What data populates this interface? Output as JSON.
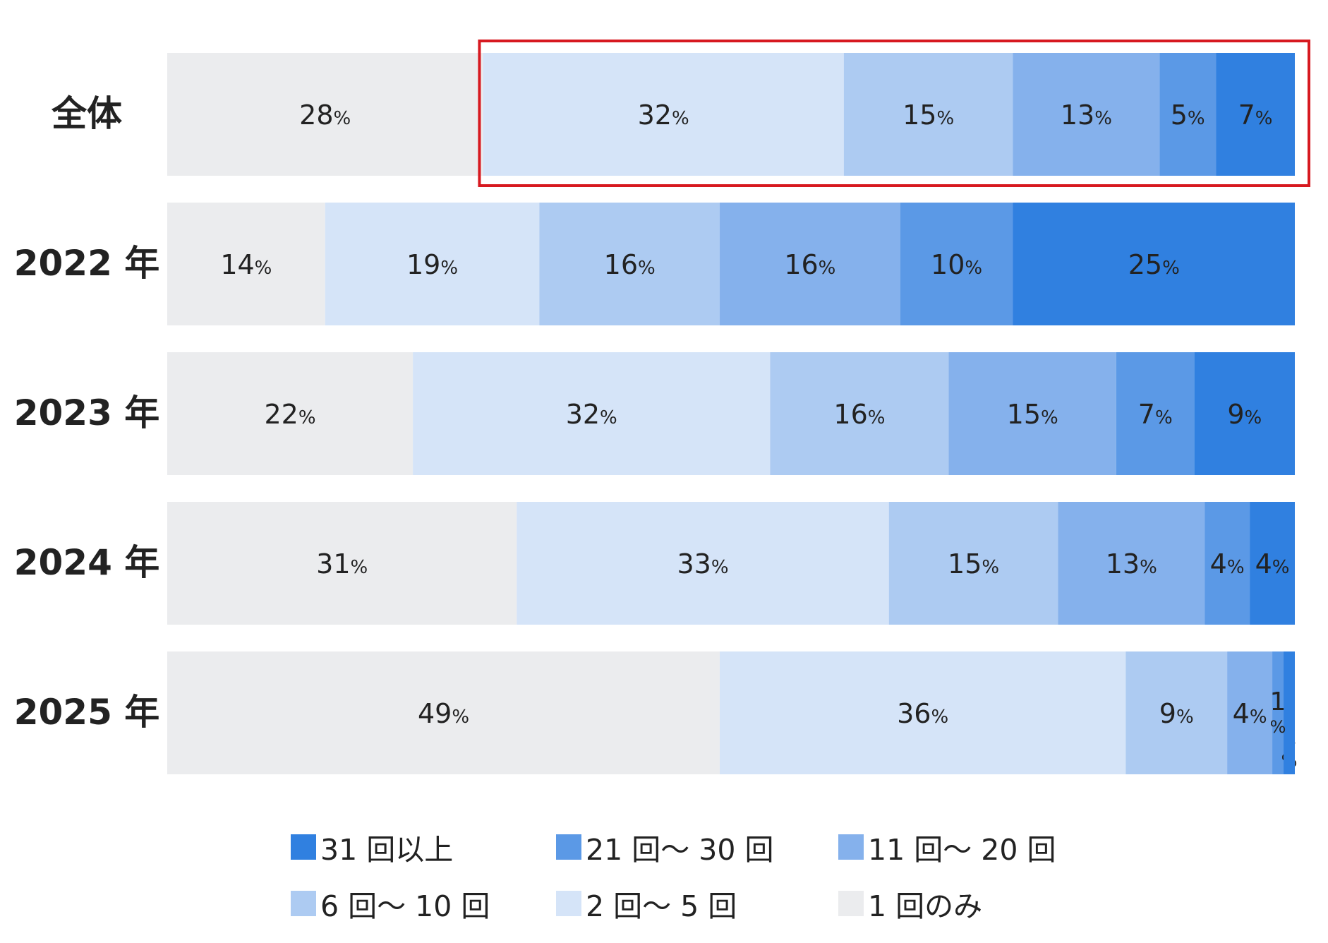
{
  "chart_data": {
    "type": "bar",
    "orientation": "horizontal",
    "stacked": true,
    "normalized_percent": true,
    "categories": [
      "全体",
      "2022 年",
      "2023 年",
      "2024 年",
      "2025 年"
    ],
    "series": [
      {
        "name": "1 回のみ",
        "color": "#ebecee",
        "values": [
          28,
          14,
          22,
          31,
          49
        ]
      },
      {
        "name": "2 回～ 5 回",
        "color": "#d5e4f8",
        "values": [
          32,
          19,
          32,
          33,
          36
        ]
      },
      {
        "name": "6 回～ 10 回",
        "color": "#adcbf2",
        "values": [
          15,
          16,
          16,
          15,
          9
        ]
      },
      {
        "name": "11 回～ 20 回",
        "color": "#85b1ec",
        "values": [
          13,
          16,
          15,
          13,
          4
        ]
      },
      {
        "name": "21 回～ 30 回",
        "color": "#5b99e6",
        "values": [
          5,
          10,
          7,
          4,
          1
        ]
      },
      {
        "name": "31 回以上",
        "color": "#3080e0",
        "values": [
          7,
          25,
          9,
          4,
          1
        ]
      }
    ],
    "value_suffix": "%",
    "legend_order": [
      "31 回以上",
      "21 回～ 30 回",
      "11 回～ 20 回",
      "6 回～ 10 回",
      "2 回～ 5 回",
      "1 回のみ"
    ],
    "legend_position": "bottom",
    "highlight": {
      "category": "全体",
      "series_from": "2 回～ 5 回",
      "series_to": "31 回以上",
      "color": "#d71920"
    },
    "grid": false
  }
}
